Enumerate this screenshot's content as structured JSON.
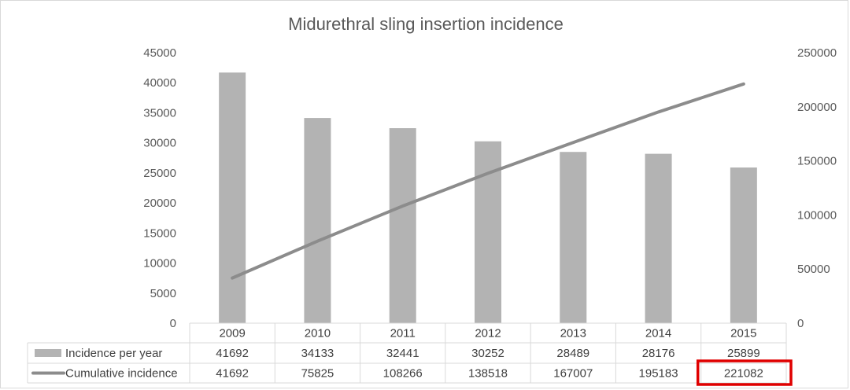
{
  "chart_data": {
    "type": "bar+line",
    "title": "Midurethral sling insertion incidence",
    "categories": [
      "2009",
      "2010",
      "2011",
      "2012",
      "2013",
      "2014",
      "2015"
    ],
    "series": [
      {
        "name": "Incidence per year",
        "type": "bar",
        "axis": "primary",
        "color": "#b3b3b3",
        "values": [
          41692,
          34133,
          32441,
          30252,
          28489,
          28176,
          25899
        ]
      },
      {
        "name": "Cumulative incidence",
        "type": "line",
        "axis": "secondary",
        "color": "#8c8c8c",
        "values": [
          41692,
          75825,
          108266,
          138518,
          167007,
          195183,
          221082
        ]
      }
    ],
    "y_primary": {
      "min": 0,
      "max": 45000,
      "step": 5000,
      "ticks": [
        "0",
        "5000",
        "10000",
        "15000",
        "20000",
        "25000",
        "30000",
        "35000",
        "40000",
        "45000"
      ]
    },
    "y_secondary": {
      "min": 0,
      "max": 250000,
      "step": 50000,
      "ticks": [
        "0",
        "50000",
        "100000",
        "150000",
        "200000",
        "250000"
      ]
    },
    "grid": false,
    "legend": "data-table",
    "highlight": {
      "series": "Cumulative incidence",
      "category": "2015",
      "color": "#e00000"
    },
    "data_table": {
      "rows": [
        {
          "label": "Incidence per year",
          "values": [
            "41692",
            "34133",
            "32441",
            "30252",
            "28489",
            "28176",
            "25899"
          ]
        },
        {
          "label": "Cumulative incidence",
          "values": [
            "41692",
            "75825",
            "108266",
            "138518",
            "167007",
            "195183",
            "221082"
          ]
        }
      ]
    }
  }
}
